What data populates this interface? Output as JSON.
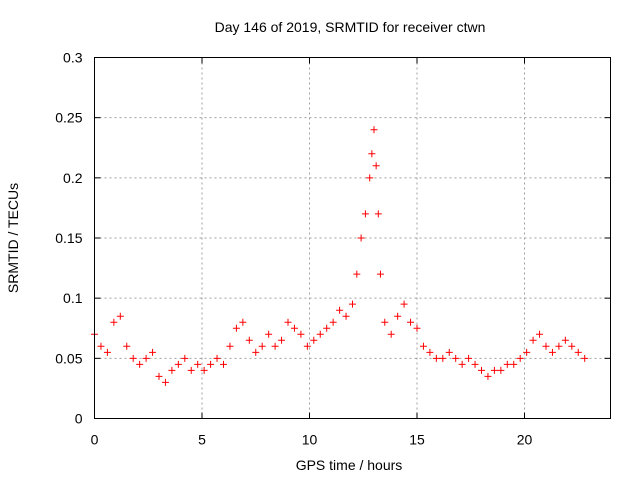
{
  "chart_data": {
    "type": "scatter",
    "title": "Day 146 of 2019, SRMTID for receiver ctwn",
    "xlabel": "GPS time / hours",
    "ylabel": "SRMTID / TECUs",
    "xlim": [
      0,
      24
    ],
    "ylim": [
      0,
      0.3
    ],
    "xticks": [
      0,
      5,
      10,
      15,
      20
    ],
    "xtick_labels": [
      "0",
      "5",
      "10",
      "15",
      "20"
    ],
    "yticks": [
      0,
      0.05,
      0.1,
      0.15,
      0.2,
      0.25,
      0.3
    ],
    "ytick_labels": [
      "0",
      "0.05",
      "0.1",
      "0.15",
      "0.2",
      "0.25",
      "0.3"
    ],
    "grid": true,
    "marker": "+",
    "color": "#ff0000",
    "series": [
      {
        "name": "SRMTID",
        "x": [
          0.0,
          0.3,
          0.6,
          0.9,
          1.2,
          1.5,
          1.8,
          2.1,
          2.4,
          2.7,
          3.0,
          3.3,
          3.6,
          3.9,
          4.2,
          4.5,
          4.8,
          5.1,
          5.4,
          5.7,
          6.0,
          6.3,
          6.6,
          6.9,
          7.2,
          7.5,
          7.8,
          8.1,
          8.4,
          8.7,
          9.0,
          9.3,
          9.6,
          9.9,
          10.2,
          10.5,
          10.8,
          11.1,
          11.4,
          11.7,
          12.0,
          12.2,
          12.4,
          12.6,
          12.8,
          12.9,
          13.0,
          13.1,
          13.2,
          13.3,
          13.5,
          13.8,
          14.1,
          14.4,
          14.7,
          15.0,
          15.3,
          15.6,
          15.9,
          16.2,
          16.5,
          16.8,
          17.1,
          17.4,
          17.7,
          18.0,
          18.3,
          18.6,
          18.9,
          19.2,
          19.5,
          19.8,
          20.1,
          20.4,
          20.7,
          21.0,
          21.3,
          21.6,
          21.9,
          22.2,
          22.5,
          22.8
        ],
        "y": [
          0.07,
          0.06,
          0.055,
          0.08,
          0.085,
          0.06,
          0.05,
          0.045,
          0.05,
          0.055,
          0.035,
          0.03,
          0.04,
          0.045,
          0.05,
          0.04,
          0.045,
          0.04,
          0.045,
          0.05,
          0.045,
          0.06,
          0.075,
          0.08,
          0.065,
          0.055,
          0.06,
          0.07,
          0.06,
          0.065,
          0.08,
          0.075,
          0.07,
          0.06,
          0.065,
          0.07,
          0.075,
          0.08,
          0.09,
          0.085,
          0.095,
          0.12,
          0.15,
          0.17,
          0.2,
          0.22,
          0.24,
          0.21,
          0.17,
          0.12,
          0.08,
          0.07,
          0.085,
          0.095,
          0.08,
          0.075,
          0.06,
          0.055,
          0.05,
          0.05,
          0.055,
          0.05,
          0.045,
          0.05,
          0.045,
          0.04,
          0.035,
          0.04,
          0.04,
          0.045,
          0.045,
          0.05,
          0.055,
          0.065,
          0.07,
          0.06,
          0.055,
          0.06,
          0.065,
          0.06,
          0.055,
          0.05
        ]
      }
    ]
  }
}
